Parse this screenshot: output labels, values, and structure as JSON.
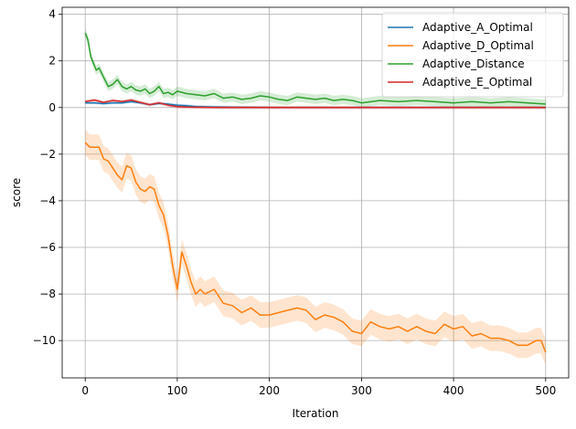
{
  "chart_data": {
    "type": "line",
    "title": "",
    "xlabel": "Iteration",
    "ylabel": "score",
    "xlim": [
      -25,
      525
    ],
    "ylim": [
      -11.6,
      4.3
    ],
    "xticks": [
      0,
      100,
      200,
      300,
      400,
      500
    ],
    "yticks": [
      -10,
      -8,
      -6,
      -4,
      -2,
      0,
      2,
      4
    ],
    "grid": true,
    "legend_position": "top-right",
    "series": [
      {
        "name": "Adaptive_A_Optimal",
        "color": "#1f77b4",
        "x": [
          0,
          10,
          20,
          30,
          40,
          50,
          60,
          70,
          80,
          90,
          100,
          110,
          120,
          140,
          160,
          200,
          300,
          400,
          500
        ],
        "y": [
          0.2,
          0.2,
          0.17,
          0.2,
          0.2,
          0.25,
          0.2,
          0.12,
          0.18,
          0.15,
          0.1,
          0.08,
          0.04,
          0.02,
          0.01,
          0.0,
          0.0,
          0.0,
          0.0
        ],
        "band": 0.06
      },
      {
        "name": "Adaptive_D_Optimal",
        "color": "#ff7f0e",
        "x": [
          0,
          5,
          10,
          15,
          20,
          25,
          30,
          35,
          40,
          45,
          50,
          55,
          60,
          65,
          70,
          75,
          80,
          85,
          90,
          95,
          100,
          105,
          110,
          115,
          120,
          125,
          130,
          140,
          150,
          160,
          170,
          180,
          190,
          200,
          210,
          220,
          230,
          240,
          250,
          260,
          270,
          280,
          290,
          300,
          310,
          320,
          330,
          340,
          350,
          360,
          370,
          380,
          390,
          400,
          410,
          420,
          430,
          440,
          450,
          460,
          470,
          480,
          490,
          495,
          500
        ],
        "y": [
          -1.5,
          -1.7,
          -1.7,
          -1.7,
          -2.2,
          -2.3,
          -2.6,
          -2.9,
          -3.1,
          -2.5,
          -2.6,
          -3.2,
          -3.5,
          -3.6,
          -3.4,
          -3.5,
          -4.2,
          -4.6,
          -5.5,
          -6.8,
          -7.8,
          -6.2,
          -6.8,
          -7.5,
          -8.0,
          -7.8,
          -8.0,
          -7.8,
          -8.4,
          -8.5,
          -8.8,
          -8.6,
          -8.9,
          -8.9,
          -8.8,
          -8.7,
          -8.6,
          -8.7,
          -9.1,
          -8.9,
          -9.0,
          -9.2,
          -9.6,
          -9.7,
          -9.2,
          -9.4,
          -9.5,
          -9.4,
          -9.6,
          -9.4,
          -9.6,
          -9.7,
          -9.3,
          -9.5,
          -9.4,
          -9.8,
          -9.7,
          -9.9,
          -9.9,
          -10.0,
          -10.2,
          -10.2,
          -10.0,
          -10.0,
          -10.5
        ],
        "band": 0.55
      },
      {
        "name": "Adaptive_Distance",
        "color": "#2ca02c",
        "x": [
          0,
          3,
          6,
          9,
          12,
          15,
          20,
          25,
          30,
          35,
          40,
          45,
          50,
          55,
          60,
          65,
          70,
          75,
          80,
          85,
          90,
          95,
          100,
          110,
          120,
          130,
          140,
          150,
          160,
          170,
          180,
          190,
          200,
          210,
          220,
          230,
          240,
          250,
          260,
          270,
          280,
          290,
          300,
          320,
          340,
          360,
          380,
          400,
          420,
          440,
          460,
          480,
          500
        ],
        "y": [
          3.2,
          2.9,
          2.2,
          1.9,
          1.6,
          1.7,
          1.3,
          0.9,
          1.0,
          1.2,
          0.9,
          0.8,
          0.9,
          0.75,
          0.7,
          0.8,
          0.6,
          0.7,
          0.9,
          0.6,
          0.65,
          0.55,
          0.7,
          0.6,
          0.55,
          0.5,
          0.6,
          0.4,
          0.45,
          0.35,
          0.4,
          0.5,
          0.45,
          0.35,
          0.3,
          0.45,
          0.4,
          0.35,
          0.4,
          0.3,
          0.35,
          0.3,
          0.2,
          0.3,
          0.25,
          0.3,
          0.25,
          0.2,
          0.25,
          0.2,
          0.25,
          0.2,
          0.15
        ],
        "band": 0.2
      },
      {
        "name": "Adaptive_E_Optimal",
        "color": "#d62728",
        "x": [
          0,
          10,
          20,
          30,
          40,
          50,
          60,
          70,
          80,
          90,
          100,
          110,
          120,
          140,
          160,
          200,
          300,
          400,
          500
        ],
        "y": [
          0.25,
          0.32,
          0.22,
          0.3,
          0.26,
          0.32,
          0.22,
          0.12,
          0.2,
          0.1,
          0.04,
          0.02,
          0.01,
          0.0,
          0.0,
          0.0,
          0.0,
          0.0,
          0.0
        ],
        "band": 0.07
      }
    ]
  }
}
